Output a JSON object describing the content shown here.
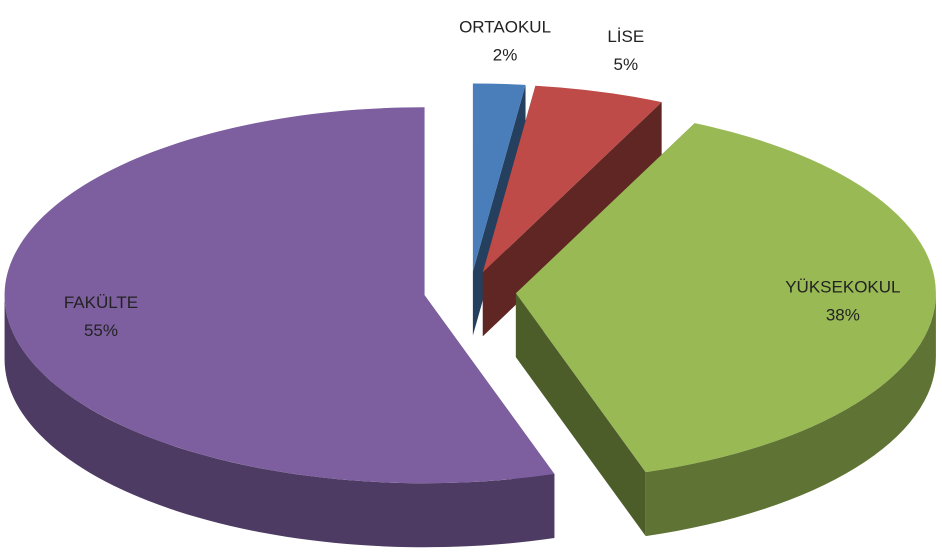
{
  "chart_data": {
    "type": "pie3d",
    "categories": [
      "ORTAOKUL",
      "LİSE",
      "YÜKSEKOKUL",
      "FAKÜLTE"
    ],
    "values": [
      2,
      5,
      38,
      55
    ],
    "value_labels": [
      "2%",
      "5%",
      "38%",
      "55%"
    ],
    "colors": [
      "#4a7ebb",
      "#be4b48",
      "#98b954",
      "#7d5fa0"
    ]
  }
}
